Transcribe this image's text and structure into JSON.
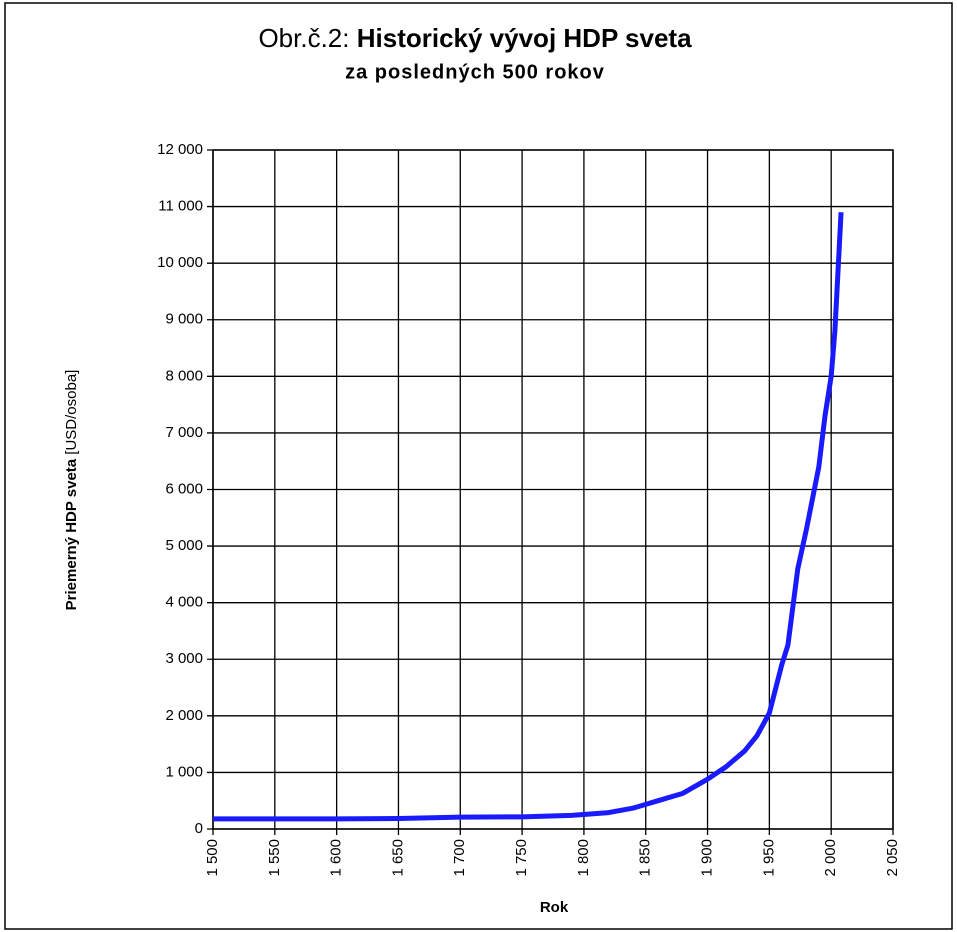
{
  "chart_data": {
    "type": "line",
    "figure_label": "Obr.č.2:",
    "title": "Historický vývoj HDP sveta",
    "subtitle": "za posledných 500 rokov",
    "ylabel": "Priemerný HDP sveta",
    "ylabel_unit": "[USD/osoba]",
    "xlabel": "Rok",
    "x": [
      1500,
      1600,
      1650,
      1700,
      1750,
      1790,
      1820,
      1840,
      1860,
      1880,
      1900,
      1915,
      1930,
      1940,
      1950,
      1960,
      1965,
      1973,
      1980,
      1990,
      1995,
      2000,
      2003,
      2008
    ],
    "series": [
      {
        "name": "HDP",
        "color": "#1a1aff",
        "values": [
          180,
          180,
          185,
          210,
          215,
          240,
          290,
          370,
          500,
          630,
          880,
          1100,
          1380,
          1650,
          2050,
          2900,
          3250,
          4600,
          5300,
          6400,
          7300,
          8000,
          8800,
          10900
        ]
      }
    ],
    "xlim": [
      1500,
      2050
    ],
    "xticks": [
      {
        "value": 1500,
        "label": "1 500"
      },
      {
        "value": 1550,
        "label": "1 550"
      },
      {
        "value": 1600,
        "label": "1 600"
      },
      {
        "value": 1650,
        "label": "1 650"
      },
      {
        "value": 1700,
        "label": "1 700"
      },
      {
        "value": 1750,
        "label": "1 750"
      },
      {
        "value": 1800,
        "label": "1 800"
      },
      {
        "value": 1850,
        "label": "1 850"
      },
      {
        "value": 1900,
        "label": "1 900"
      },
      {
        "value": 1950,
        "label": "1 950"
      },
      {
        "value": 2000,
        "label": "2 000"
      },
      {
        "value": 2050,
        "label": "2 050"
      }
    ],
    "ylim": [
      0,
      12000
    ],
    "yticks": [
      0,
      {
        "value": 1000,
        "label": "1 000"
      },
      {
        "value": 2000,
        "label": "2 000"
      },
      {
        "value": 3000,
        "label": "3 000"
      },
      {
        "value": 4000,
        "label": "4 000"
      },
      {
        "value": 5000,
        "label": "5 000"
      },
      {
        "value": 6000,
        "label": "6 000"
      },
      {
        "value": 7000,
        "label": "7 000"
      },
      {
        "value": 8000,
        "label": "8 000"
      },
      {
        "value": 9000,
        "label": "9 000"
      },
      {
        "value": 10000,
        "label": "10 000"
      },
      {
        "value": 11000,
        "label": "11 000"
      },
      {
        "value": 12000,
        "label": "12 000"
      }
    ],
    "grid": true
  }
}
